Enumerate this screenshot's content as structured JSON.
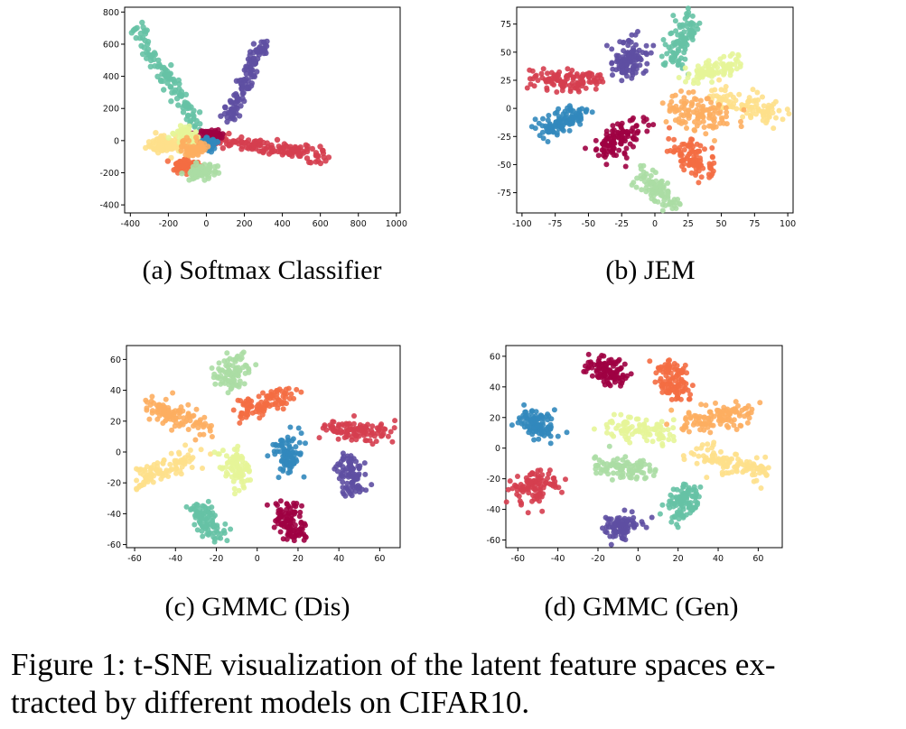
{
  "colors": {
    "class_palette": [
      "#9e0142",
      "#d53e4f",
      "#f46d43",
      "#fdae61",
      "#fee08b",
      "#e6f598",
      "#abdda4",
      "#66c2a5",
      "#3288bd",
      "#5e4fa2"
    ]
  },
  "figure_caption": {
    "line1": "Figure 1: t-SNE visualization of the latent feature spaces ex-",
    "line2": "tracted by different models on CIFAR10."
  },
  "chart_data": [
    {
      "type": "scatter",
      "subcaption": "(a) Softmax Classifier",
      "xlim": [
        -430,
        1020
      ],
      "ylim": [
        -450,
        830
      ],
      "xticks": [
        -400,
        -200,
        0,
        200,
        400,
        600,
        800,
        1000
      ],
      "yticks": [
        -400,
        -200,
        0,
        200,
        400,
        600,
        800
      ],
      "grid": false,
      "clusters": [
        {
          "class": 7,
          "color": "#66c2a5",
          "from": [
            -360,
            690
          ],
          "to": [
            -50,
            100
          ],
          "spread": 25,
          "n": 110
        },
        {
          "class": 9,
          "color": "#5e4fa2",
          "from": [
            120,
            150
          ],
          "to": [
            300,
            600
          ],
          "spread": 22,
          "n": 110
        },
        {
          "class": 1,
          "color": "#d53e4f",
          "from": [
            80,
            0
          ],
          "to": [
            650,
            -100
          ],
          "spread": 22,
          "n": 130
        },
        {
          "class": 0,
          "color": "#9e0142",
          "from": [
            -20,
            30
          ],
          "to": [
            60,
            30
          ],
          "spread": 25,
          "n": 70
        },
        {
          "class": 8,
          "color": "#3288bd",
          "from": [
            -10,
            -20
          ],
          "to": [
            30,
            -20
          ],
          "spread": 20,
          "n": 60
        },
        {
          "class": 4,
          "color": "#fee08b",
          "from": [
            -270,
            -20
          ],
          "to": [
            -150,
            -20
          ],
          "spread": 30,
          "n": 90
        },
        {
          "class": 2,
          "color": "#f46d43",
          "from": [
            -130,
            -150
          ],
          "to": [
            -80,
            -160
          ],
          "spread": 25,
          "n": 60
        },
        {
          "class": 5,
          "color": "#e6f598",
          "from": [
            -140,
            50
          ],
          "to": [
            -60,
            0
          ],
          "spread": 30,
          "n": 60
        },
        {
          "class": 6,
          "color": "#abdda4",
          "from": [
            -60,
            -200
          ],
          "to": [
            20,
            -180
          ],
          "spread": 25,
          "n": 70
        },
        {
          "class": 3,
          "color": "#fdae61",
          "from": [
            -100,
            -40
          ],
          "to": [
            -30,
            -60
          ],
          "spread": 25,
          "n": 60
        }
      ]
    },
    {
      "type": "scatter",
      "subcaption": "(b) JEM",
      "xlim": [
        -104,
        104
      ],
      "ylim": [
        -93,
        90
      ],
      "xticks": [
        -100,
        -75,
        -50,
        -25,
        0,
        25,
        50,
        75,
        100
      ],
      "yticks": [
        -75,
        -50,
        -25,
        0,
        25,
        50,
        75
      ],
      "grid": false,
      "clusters": [
        {
          "class": 1,
          "color": "#d53e4f",
          "from": [
            -90,
            25
          ],
          "to": [
            -45,
            25
          ],
          "spread": 5,
          "n": 110
        },
        {
          "class": 9,
          "color": "#5e4fa2",
          "from": [
            -20,
            55
          ],
          "to": [
            -20,
            35
          ],
          "spread": 7,
          "n": 110
        },
        {
          "class": 7,
          "color": "#66c2a5",
          "from": [
            15,
            40
          ],
          "to": [
            25,
            80
          ],
          "spread": 5,
          "n": 100
        },
        {
          "class": 5,
          "color": "#e6f598",
          "from": [
            30,
            30
          ],
          "to": [
            60,
            40
          ],
          "spread": 5,
          "n": 90
        },
        {
          "class": 4,
          "color": "#fee08b",
          "from": [
            45,
            10
          ],
          "to": [
            90,
            -5
          ],
          "spread": 6,
          "n": 100
        },
        {
          "class": 3,
          "color": "#fdae61",
          "from": [
            15,
            0
          ],
          "to": [
            50,
            -10
          ],
          "spread": 8,
          "n": 110
        },
        {
          "class": 2,
          "color": "#f46d43",
          "from": [
            20,
            -35
          ],
          "to": [
            40,
            -55
          ],
          "spread": 6,
          "n": 100
        },
        {
          "class": 6,
          "color": "#abdda4",
          "from": [
            -10,
            -60
          ],
          "to": [
            15,
            -85
          ],
          "spread": 5,
          "n": 90
        },
        {
          "class": 0,
          "color": "#9e0142",
          "from": [
            -40,
            -40
          ],
          "to": [
            -15,
            -15
          ],
          "spread": 6,
          "n": 110
        },
        {
          "class": 8,
          "color": "#3288bd",
          "from": [
            -85,
            -20
          ],
          "to": [
            -55,
            -5
          ],
          "spread": 5,
          "n": 110
        }
      ]
    },
    {
      "type": "scatter",
      "subcaption": "(c) GMMC (Dis)",
      "xlim": [
        -64,
        70
      ],
      "ylim": [
        -62,
        69
      ],
      "xticks": [
        -60,
        -40,
        -20,
        0,
        20,
        40,
        60
      ],
      "yticks": [
        -60,
        -40,
        -20,
        0,
        20,
        40,
        60
      ],
      "grid": false,
      "clusters": [
        {
          "class": 6,
          "color": "#abdda4",
          "from": [
            -15,
            45
          ],
          "to": [
            -10,
            60
          ],
          "spread": 4,
          "n": 90
        },
        {
          "class": 2,
          "color": "#f46d43",
          "from": [
            -10,
            25
          ],
          "to": [
            15,
            38
          ],
          "spread": 3.5,
          "n": 100
        },
        {
          "class": 1,
          "color": "#d53e4f",
          "from": [
            35,
            15
          ],
          "to": [
            63,
            13
          ],
          "spread": 3,
          "n": 110
        },
        {
          "class": 3,
          "color": "#fdae61",
          "from": [
            -50,
            30
          ],
          "to": [
            -25,
            15
          ],
          "spread": 3.5,
          "n": 110
        },
        {
          "class": 8,
          "color": "#3288bd",
          "from": [
            15,
            8
          ],
          "to": [
            15,
            -12
          ],
          "spread": 3.5,
          "n": 90
        },
        {
          "class": 9,
          "color": "#5e4fa2",
          "from": [
            43,
            -5
          ],
          "to": [
            48,
            -25
          ],
          "spread": 3.5,
          "n": 90
        },
        {
          "class": 4,
          "color": "#fee08b",
          "from": [
            -60,
            -20
          ],
          "to": [
            -30,
            -2
          ],
          "spread": 3.5,
          "n": 100
        },
        {
          "class": 5,
          "color": "#e6f598",
          "from": [
            -13,
            0
          ],
          "to": [
            -8,
            -20
          ],
          "spread": 3.5,
          "n": 80
        },
        {
          "class": 7,
          "color": "#66c2a5",
          "from": [
            -30,
            -35
          ],
          "to": [
            -20,
            -55
          ],
          "spread": 3.5,
          "n": 90
        },
        {
          "class": 0,
          "color": "#9e0142",
          "from": [
            15,
            -35
          ],
          "to": [
            18,
            -55
          ],
          "spread": 3.5,
          "n": 100
        }
      ]
    },
    {
      "type": "scatter",
      "subcaption": "(d) GMMC (Gen)",
      "xlim": [
        -66,
        72
      ],
      "ylim": [
        -65,
        67
      ],
      "xticks": [
        -60,
        -40,
        -20,
        0,
        20,
        40,
        60
      ],
      "yticks": [
        -60,
        -40,
        -20,
        0,
        20,
        40,
        60
      ],
      "grid": false,
      "clusters": [
        {
          "class": 0,
          "color": "#9e0142",
          "from": [
            -20,
            55
          ],
          "to": [
            -10,
            45
          ],
          "spread": 4,
          "n": 100
        },
        {
          "class": 2,
          "color": "#f46d43",
          "from": [
            15,
            55
          ],
          "to": [
            20,
            35
          ],
          "spread": 4,
          "n": 100
        },
        {
          "class": 8,
          "color": "#3288bd",
          "from": [
            -55,
            20
          ],
          "to": [
            -45,
            10
          ],
          "spread": 4,
          "n": 100
        },
        {
          "class": 5,
          "color": "#e6f598",
          "from": [
            -15,
            15
          ],
          "to": [
            15,
            10
          ],
          "spread": 4,
          "n": 90
        },
        {
          "class": 3,
          "color": "#fdae61",
          "from": [
            25,
            15
          ],
          "to": [
            55,
            25
          ],
          "spread": 4,
          "n": 110
        },
        {
          "class": 4,
          "color": "#fee08b",
          "from": [
            30,
            -5
          ],
          "to": [
            62,
            -15
          ],
          "spread": 4,
          "n": 110
        },
        {
          "class": 6,
          "color": "#abdda4",
          "from": [
            -20,
            -12
          ],
          "to": [
            5,
            -15
          ],
          "spread": 4,
          "n": 90
        },
        {
          "class": 1,
          "color": "#d53e4f",
          "from": [
            -57,
            -30
          ],
          "to": [
            -45,
            -20
          ],
          "spread": 5,
          "n": 100
        },
        {
          "class": 7,
          "color": "#66c2a5",
          "from": [
            20,
            -45
          ],
          "to": [
            25,
            -25
          ],
          "spread": 4,
          "n": 100
        },
        {
          "class": 9,
          "color": "#5e4fa2",
          "from": [
            -15,
            -55
          ],
          "to": [
            -5,
            -50
          ],
          "spread": 4,
          "n": 90
        }
      ]
    }
  ]
}
